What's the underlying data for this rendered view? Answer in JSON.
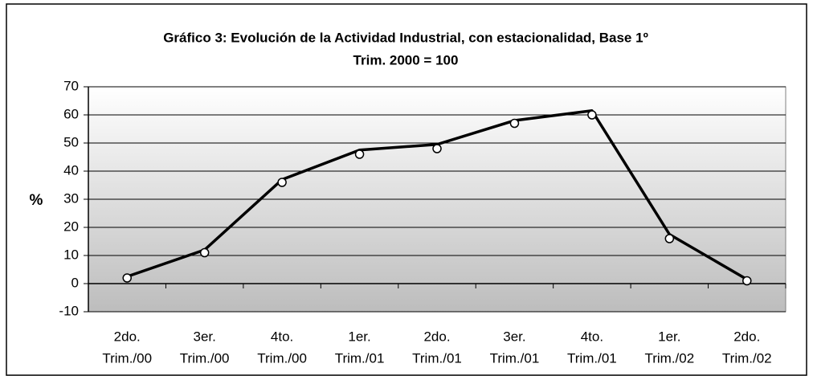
{
  "chart_data": {
    "type": "line",
    "title": [
      "Gráfico 3: Evolución de la Actividad Industrial, con estacionalidad, Base 1º",
      "Trim. 2000 = 100"
    ],
    "ylabel": "%",
    "categories": [
      [
        "2do.",
        "Trim./00"
      ],
      [
        "3er.",
        "Trim./00"
      ],
      [
        "4to.",
        "Trim./00"
      ],
      [
        "1er.",
        "Trim./01"
      ],
      [
        "2do.",
        "Trim./01"
      ],
      [
        "3er.",
        "Trim./01"
      ],
      [
        "4to.",
        "Trim./01"
      ],
      [
        "1er.",
        "Trim./02"
      ],
      [
        "2do.",
        "Trim./02"
      ]
    ],
    "series": [
      {
        "color": "#000000",
        "style": "line",
        "values": [
          2.5,
          12,
          37,
          47.5,
          49.5,
          58,
          61.5,
          17.5,
          1.5
        ]
      },
      {
        "color": "#000000",
        "style": "markers",
        "values": [
          2,
          11,
          36,
          46,
          48,
          57,
          60,
          16,
          1
        ]
      }
    ],
    "ylim": [
      -10,
      70
    ],
    "yticks": [
      -10,
      0,
      10,
      20,
      30,
      40,
      50,
      60,
      70
    ],
    "grid": true
  }
}
